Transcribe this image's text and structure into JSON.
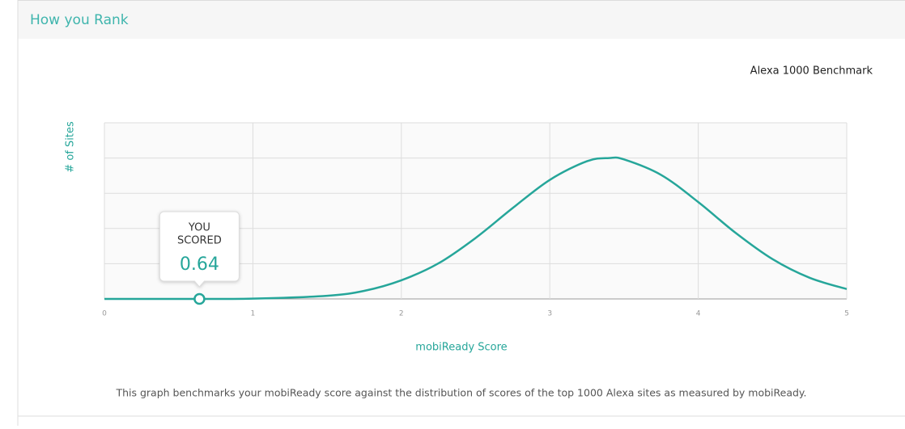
{
  "header": {
    "title": "How you Rank"
  },
  "chart_data": {
    "type": "line",
    "title": "Alexa 1000 Benchmark",
    "x": [
      0,
      0.5,
      1,
      1.5,
      1.75,
      2,
      2.25,
      2.5,
      2.75,
      3,
      3.25,
      3.4,
      3.5,
      3.75,
      4,
      4.25,
      4.5,
      4.75,
      5
    ],
    "series": [
      {
        "name": "Alexa 1000",
        "color": "#26a69a",
        "values": [
          0,
          0,
          0.01,
          0.09,
          0.23,
          0.53,
          1.01,
          1.73,
          2.58,
          3.38,
          3.91,
          4,
          3.96,
          3.52,
          2.75,
          1.88,
          1.13,
          0.6,
          0.28
        ]
      }
    ],
    "xlim": [
      0,
      5
    ],
    "xticks": [
      0,
      1,
      2,
      3,
      4,
      5
    ],
    "ylim": [
      0,
      5
    ],
    "yticks": [
      0,
      1,
      2,
      3,
      4,
      5
    ],
    "grid": true,
    "xlabel": "mobiReady Score",
    "ylabel": "# of Sites",
    "score": 0.64,
    "score_label_top": "YOU",
    "score_label_mid": "SCORED"
  },
  "footer": {
    "text": "This graph benchmarks your mobiReady score against the distribution of scores of the top 1000 Alexa sites as measured by mobiReady."
  }
}
